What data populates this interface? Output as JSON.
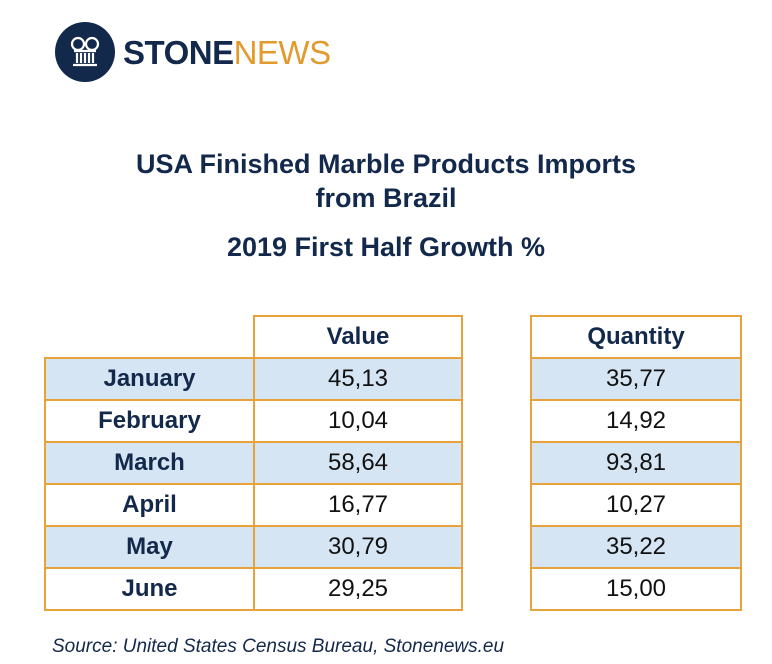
{
  "brand": {
    "name_part1": "STONE",
    "name_part2": "NEWS",
    "logo_icon": "column-icon"
  },
  "chart_data": {
    "type": "table",
    "title": "USA Finished Marble Products Imports from Brazil",
    "title_line1": "USA Finished Marble Products Imports",
    "title_line2": "from Brazil",
    "subtitle": "2019 First Half Growth %",
    "columns": [
      "Value",
      "Quantity"
    ],
    "categories": [
      "January",
      "February",
      "March",
      "April",
      "May",
      "June"
    ],
    "series": [
      {
        "name": "Value",
        "values": [
          45.13,
          10.04,
          58.64,
          16.77,
          30.79,
          29.25
        ],
        "display": [
          "45,13",
          "10,04",
          "58,64",
          "16,77",
          "30,79",
          "29,25"
        ]
      },
      {
        "name": "Quantity",
        "values": [
          35.77,
          14.92,
          93.81,
          10.27,
          35.22,
          15.0
        ],
        "display": [
          "35,77",
          "14,92",
          "93,81",
          "10,27",
          "35,22",
          "15,00"
        ]
      }
    ]
  },
  "source": "Source: United States Census Bureau, Stonenews.eu",
  "colors": {
    "navy": "#13294b",
    "orange": "#e8a23a",
    "row_shade": "#d6e5f4"
  }
}
